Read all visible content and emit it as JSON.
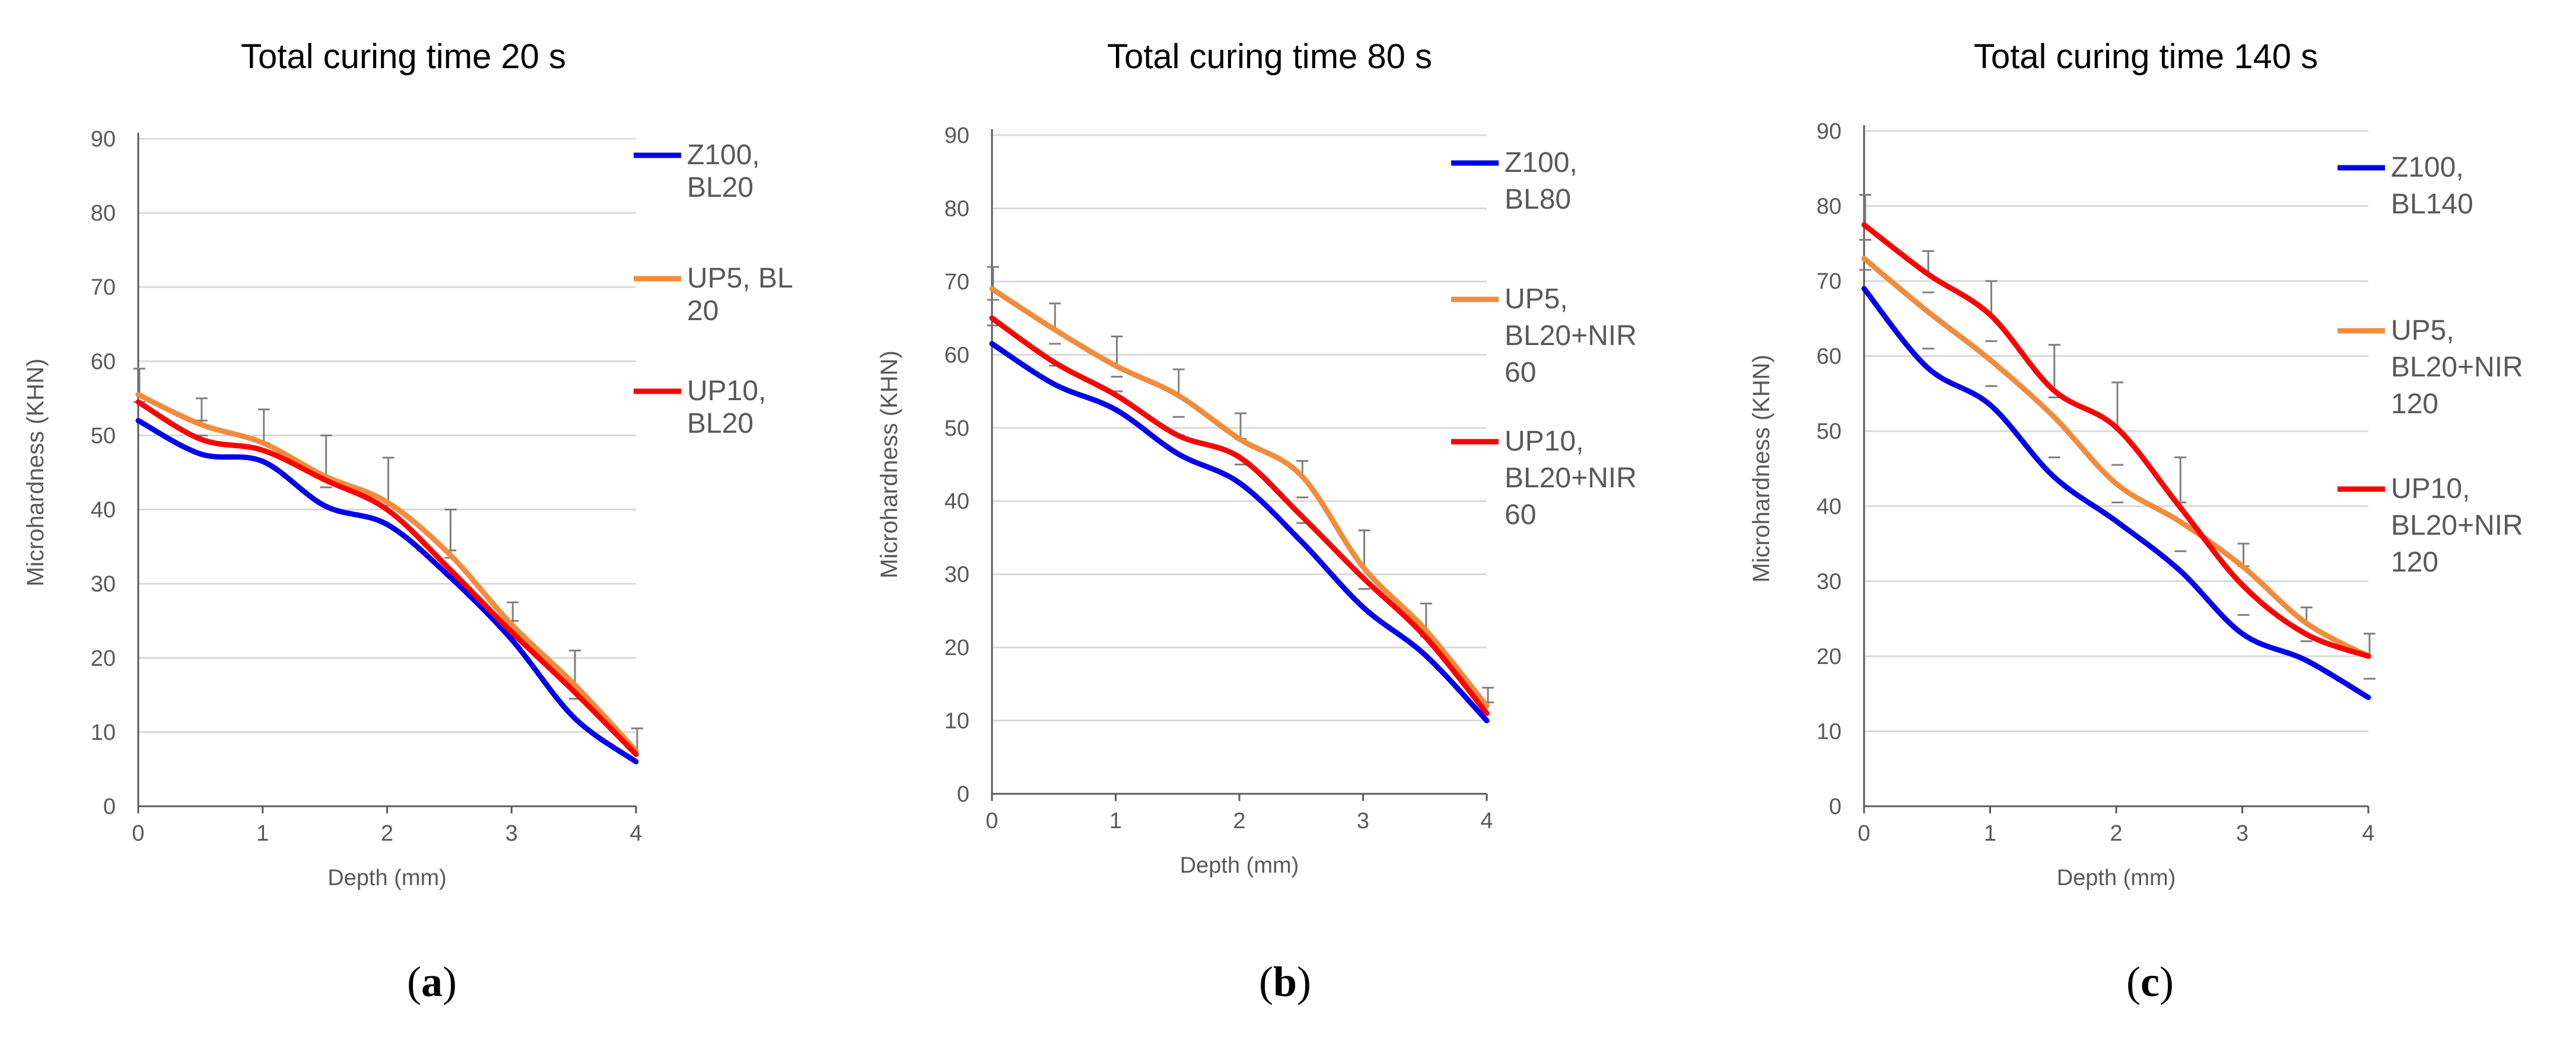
{
  "captions": [
    "(a)",
    "(b)",
    "(c)"
  ],
  "colors": {
    "z100": "#0000ee",
    "up5": "#f28c3c",
    "up10": "#ff0000",
    "grid": "#d9d9d9",
    "axis": "#595959",
    "text": "#595959",
    "errbar": "#7f7f7f"
  },
  "chart_data": [
    {
      "type": "line",
      "title": "Total curing time 20 s",
      "xlabel": "Depth (mm)",
      "ylabel": "Microhardness (KHN)",
      "xlim": [
        0,
        4
      ],
      "ylim": [
        0,
        90
      ],
      "xticks": [
        "0",
        "1",
        "2",
        "3",
        "4"
      ],
      "yticks": [
        "0",
        "10",
        "20",
        "30",
        "40",
        "50",
        "60",
        "70",
        "80",
        "90"
      ],
      "x": [
        0,
        0.5,
        1,
        1.5,
        2,
        2.5,
        3,
        3.5,
        4
      ],
      "series": [
        {
          "name": "Z100, BL20",
          "legend_lines": [
            "Z100,",
            "BL20"
          ],
          "color": "#0000ee",
          "values": [
            52,
            47.5,
            46.5,
            40.5,
            38,
            31,
            22.5,
            12,
            6
          ]
        },
        {
          "name": "UP5, BL 20",
          "legend_lines": [
            "UP5, BL",
            "20"
          ],
          "color": "#f28c3c",
          "values": [
            55.5,
            51.5,
            49,
            44.5,
            41,
            34,
            24.5,
            16.5,
            7.5
          ]
        },
        {
          "name": "UP10, BL20",
          "legend_lines": [
            "UP10,",
            "BL20"
          ],
          "color": "#ff0000",
          "values": [
            54.5,
            49.5,
            48,
            44,
            40,
            32,
            23.5,
            15.5,
            7
          ]
        }
      ],
      "error_tops": [
        59,
        55,
        53.5,
        50,
        47,
        40,
        27.5,
        21,
        10.5
      ]
    },
    {
      "type": "line",
      "title": "Total curing time 80 s",
      "xlabel": "Depth (mm)",
      "ylabel": "Microhardness (KHN)",
      "xlim": [
        0,
        4
      ],
      "ylim": [
        0,
        90
      ],
      "xticks": [
        "0",
        "1",
        "2",
        "3",
        "4"
      ],
      "yticks": [
        "0",
        "10",
        "20",
        "30",
        "40",
        "50",
        "60",
        "70",
        "80",
        "90"
      ],
      "x": [
        0,
        0.5,
        1,
        1.5,
        2,
        2.5,
        3,
        3.5,
        4
      ],
      "series": [
        {
          "name": "Z100, BL80",
          "legend_lines": [
            "Z100,",
            "BL80"
          ],
          "color": "#0000ee",
          "values": [
            61.5,
            56,
            52.5,
            46.5,
            42.5,
            34.5,
            25.5,
            19,
            10
          ]
        },
        {
          "name": "UP5, BL20+NIR 60",
          "legend_lines": [
            "UP5,",
            "BL20+NIR",
            "60"
          ],
          "color": "#f28c3c",
          "values": [
            69,
            63.5,
            58.5,
            54.5,
            48.5,
            43.5,
            31,
            22.5,
            12
          ]
        },
        {
          "name": "UP10, BL20+NIR 60",
          "legend_lines": [
            "UP10,",
            "BL20+NIR",
            "60"
          ],
          "color": "#ff0000",
          "values": [
            65,
            59,
            54.5,
            49,
            46,
            38,
            29.5,
            21.5,
            11
          ]
        }
      ],
      "error_tops": [
        72,
        67,
        62.5,
        58,
        52,
        45.5,
        36,
        26,
        14.5
      ]
    },
    {
      "type": "line",
      "title": "Total curing time 140 s",
      "xlabel": "Depth (mm)",
      "ylabel": "Microhardness (KHN)",
      "xlim": [
        0,
        4
      ],
      "ylim": [
        0,
        90
      ],
      "xticks": [
        "0",
        "1",
        "2",
        "3",
        "4"
      ],
      "yticks": [
        "0",
        "10",
        "20",
        "30",
        "40",
        "50",
        "60",
        "70",
        "80",
        "90"
      ],
      "x": [
        0,
        0.5,
        1,
        1.5,
        2,
        2.5,
        3,
        3.5,
        4
      ],
      "series": [
        {
          "name": "Z100, BL140",
          "legend_lines": [
            "Z100,",
            "BL140"
          ],
          "color": "#0000ee",
          "values": [
            69,
            58.5,
            53.5,
            44,
            38,
            31.5,
            23,
            19.5,
            14.5
          ]
        },
        {
          "name": "UP5, BL20+NIR 120",
          "legend_lines": [
            "UP5,",
            "BL20+NIR",
            "120"
          ],
          "color": "#f28c3c",
          "values": [
            73,
            66,
            59.5,
            52,
            43,
            38,
            32,
            24.5,
            20
          ]
        },
        {
          "name": "UP10, BL20+NIR 120",
          "legend_lines": [
            "UP10,",
            "BL20+NIR",
            "120"
          ],
          "color": "#ff0000",
          "values": [
            77.5,
            71,
            65.5,
            55.5,
            50.5,
            40,
            29.5,
            23,
            20
          ]
        }
      ],
      "error_tops": [
        81.5,
        74,
        70,
        61.5,
        56.5,
        46.5,
        35,
        26.5,
        23
      ]
    }
  ]
}
